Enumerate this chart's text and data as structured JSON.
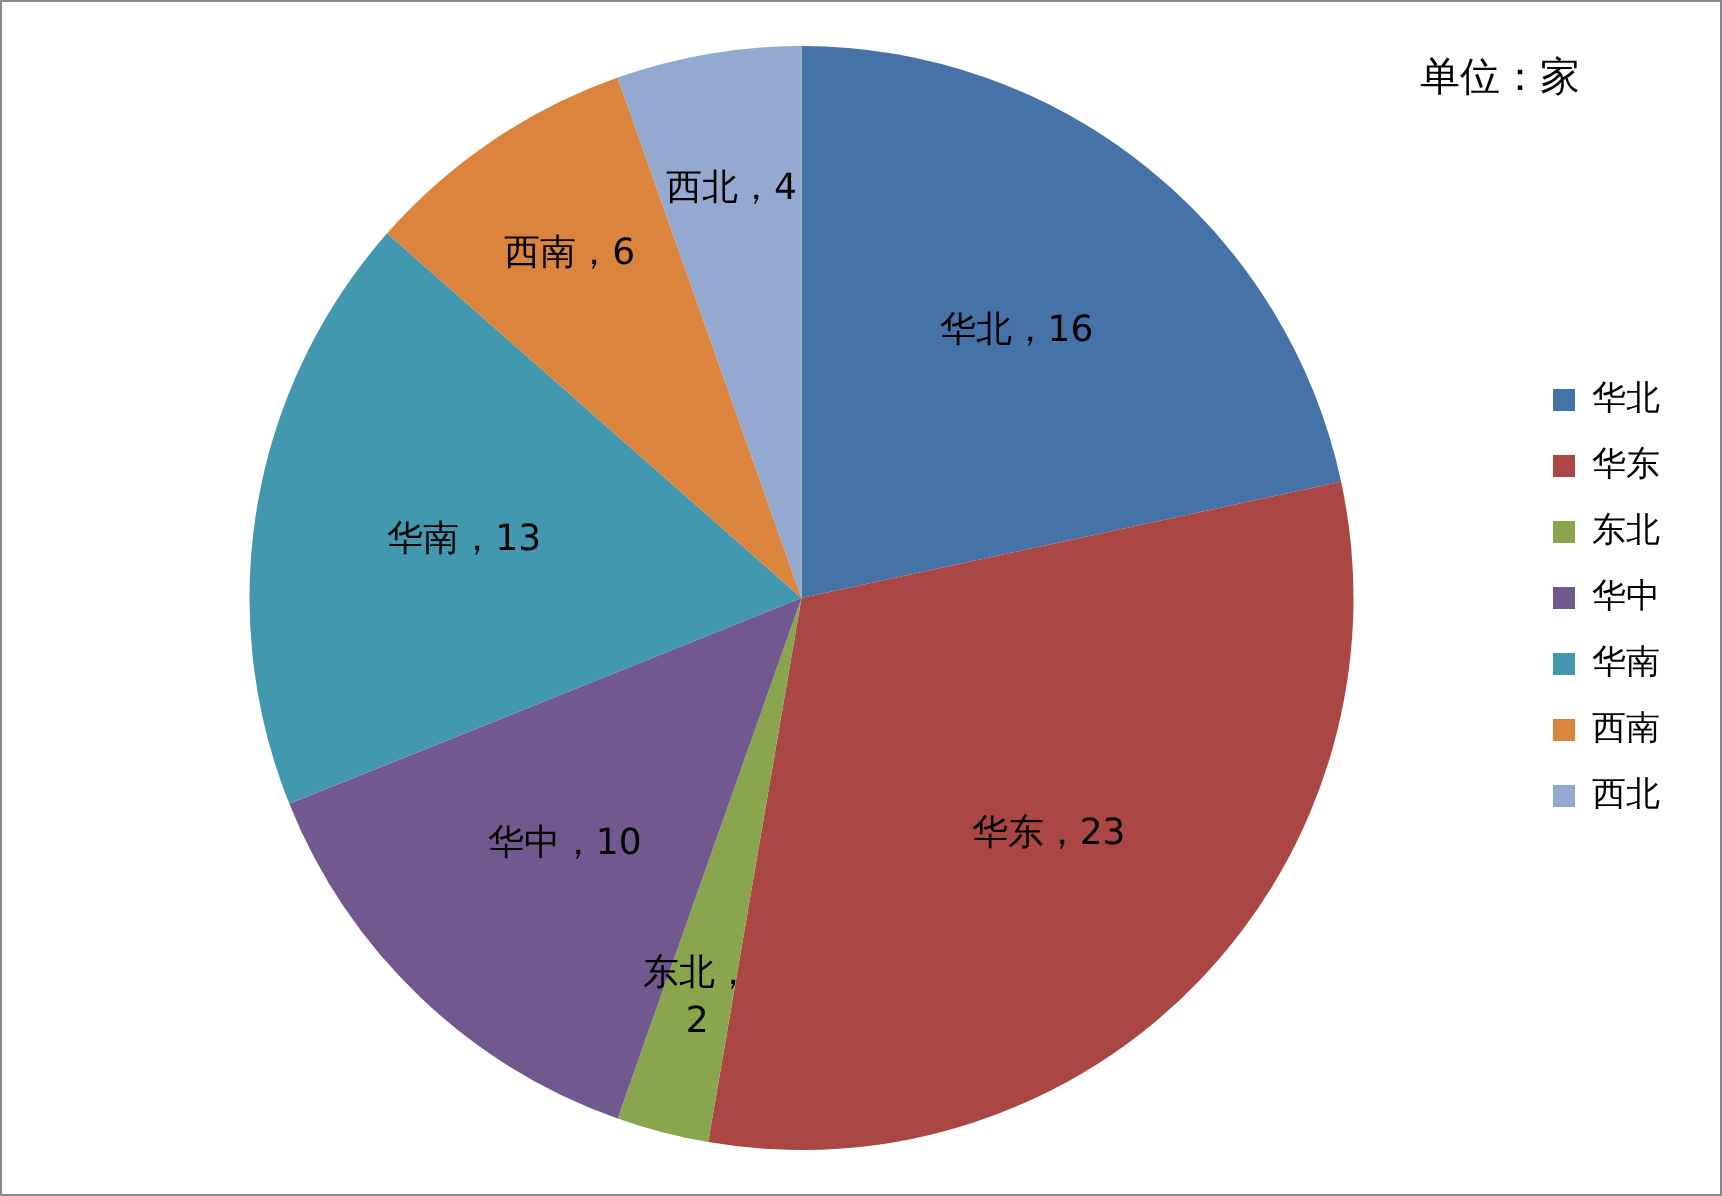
{
  "chart_data": {
    "type": "pie",
    "categories": [
      "华北",
      "华东",
      "东北",
      "华中",
      "华南",
      "西南",
      "西北"
    ],
    "values": [
      16,
      23,
      2,
      10,
      13,
      6,
      4
    ],
    "colors": [
      "#4572a7",
      "#aa4643",
      "#89a54e",
      "#71588f",
      "#4198af",
      "#db843d",
      "#93a9cf"
    ],
    "value_labels": [
      "华北，16",
      "华东，23",
      "东北，2",
      "华中，10",
      "华南，13",
      "西南，6",
      "西北，4"
    ],
    "annotations": [
      "单位：家"
    ],
    "legend": "right"
  }
}
